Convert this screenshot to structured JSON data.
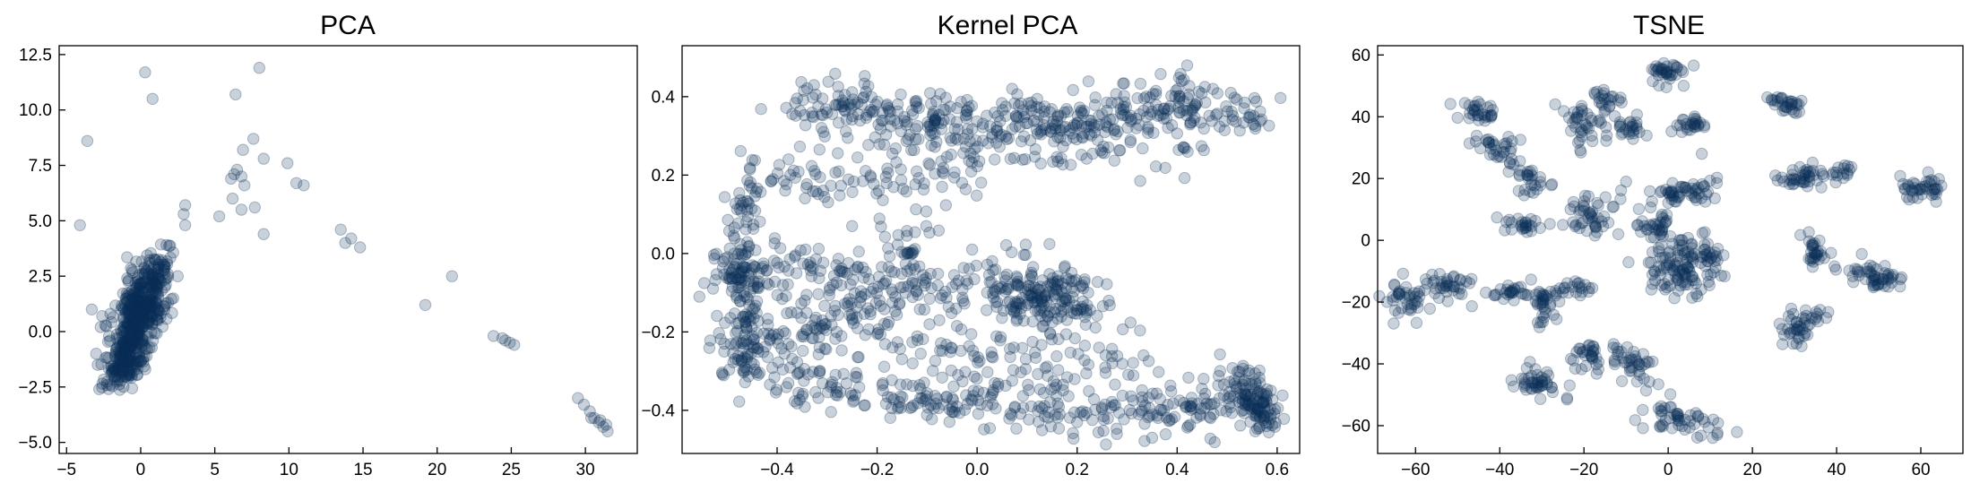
{
  "colors": {
    "point": "#0b2f57",
    "axis": "#000000",
    "background": "#ffffff"
  },
  "chart_data": [
    {
      "type": "scatter",
      "title": "PCA",
      "xlabel": "",
      "ylabel": "",
      "xlim": [
        -5.5,
        33.5
      ],
      "ylim": [
        -5.5,
        12.9
      ],
      "xticks": [
        -5,
        0,
        5,
        10,
        15,
        20,
        25,
        30
      ],
      "yticks": [
        -5.0,
        -2.5,
        0.0,
        2.5,
        5.0,
        7.5,
        10.0,
        12.5
      ],
      "xtick_labels": [
        "−5",
        "0",
        "5",
        "10",
        "15",
        "20",
        "25",
        "30"
      ],
      "ytick_labels": [
        "−5.0",
        "−2.5",
        "0.0",
        "2.5",
        "5.0",
        "7.5",
        "10.0",
        "12.5"
      ],
      "grid": false,
      "legend": "none",
      "alpha": 0.22,
      "series": [
        {
          "points": [
            [
              -3.6,
              8.6
            ],
            [
              -4.1,
              4.8
            ],
            [
              0.3,
              11.7
            ],
            [
              0.8,
              10.5
            ],
            [
              8.0,
              11.9
            ],
            [
              6.4,
              10.7
            ],
            [
              7.6,
              8.7
            ],
            [
              6.9,
              8.2
            ],
            [
              8.3,
              7.8
            ],
            [
              9.9,
              7.6
            ],
            [
              6.5,
              7.3
            ],
            [
              6.8,
              7.0
            ],
            [
              6.1,
              6.9
            ],
            [
              7.0,
              6.6
            ],
            [
              6.3,
              7.1
            ],
            [
              10.5,
              6.7
            ],
            [
              11.0,
              6.6
            ],
            [
              6.2,
              6.0
            ],
            [
              6.8,
              5.5
            ],
            [
              7.7,
              5.6
            ],
            [
              5.3,
              5.2
            ],
            [
              8.3,
              4.4
            ],
            [
              3.0,
              5.7
            ],
            [
              2.9,
              5.3
            ],
            [
              3.0,
              4.8
            ],
            [
              13.5,
              4.6
            ],
            [
              13.8,
              4.0
            ],
            [
              14.2,
              4.2
            ],
            [
              14.8,
              3.8
            ],
            [
              21.0,
              2.5
            ],
            [
              19.2,
              1.2
            ],
            [
              23.8,
              -0.2
            ],
            [
              24.4,
              -0.3
            ],
            [
              24.9,
              -0.5
            ],
            [
              25.2,
              -0.6
            ],
            [
              24.6,
              -0.4
            ],
            [
              29.5,
              -3.0
            ],
            [
              29.9,
              -3.3
            ],
            [
              30.3,
              -3.6
            ],
            [
              30.6,
              -3.9
            ],
            [
              30.9,
              -4.1
            ],
            [
              31.2,
              -4.3
            ],
            [
              31.5,
              -4.5
            ],
            [
              30.4,
              -3.9
            ],
            [
              31.0,
              -4.0
            ],
            [
              31.4,
              -4.2
            ],
            [
              -3.3,
              1.0
            ],
            [
              -2.9,
              -1.5
            ],
            [
              -2.6,
              0.7
            ],
            [
              2.5,
              2.5
            ],
            [
              2.2,
              1.5
            ],
            [
              -3.0,
              -1.0
            ],
            [
              -2.7,
              0.2
            ],
            [
              -2.8,
              -2.6
            ]
          ],
          "clusters": [
            {
              "cx": -0.3,
              "cy": 0.5,
              "sx": 0.85,
              "sy": 1.35,
              "rho": 0.62,
              "n": 430
            },
            {
              "cx": 0.9,
              "cy": 1.7,
              "sx": 0.7,
              "sy": 1.3,
              "rho": 0.5,
              "n": 90
            },
            {
              "cx": -1.1,
              "cy": -1.6,
              "sx": 0.55,
              "sy": 0.6,
              "rho": 0.3,
              "n": 80
            }
          ]
        }
      ]
    },
    {
      "type": "scatter",
      "title": "Kernel PCA",
      "xlabel": "",
      "ylabel": "",
      "xlim": [
        -0.59,
        0.645
      ],
      "ylim": [
        -0.51,
        0.53
      ],
      "xticks": [
        -0.4,
        -0.2,
        0.0,
        0.2,
        0.4,
        0.6
      ],
      "yticks": [
        -0.4,
        -0.2,
        0.0,
        0.2,
        0.4
      ],
      "xtick_labels": [
        "−0.4",
        "−0.2",
        "0.0",
        "0.2",
        "0.4",
        "0.6"
      ],
      "ytick_labels": [
        "−0.4",
        "−0.2",
        "0.0",
        "0.2",
        "0.4"
      ],
      "grid": false,
      "legend": "none",
      "alpha": 0.22,
      "series": [
        {
          "paths": [
            {
              "pts": [
                [
                  -0.36,
                  0.38
                ],
                [
                  -0.2,
                  0.36
                ],
                [
                  -0.05,
                  0.33
                ],
                [
                  0.1,
                  0.34
                ],
                [
                  0.25,
                  0.34
                ],
                [
                  0.4,
                  0.39
                ],
                [
                  0.55,
                  0.35
                ]
              ],
              "n": 420,
              "sd": 0.032
            },
            {
              "pts": [
                [
                  -0.45,
                  0.22
                ],
                [
                  -0.3,
                  0.18
                ],
                [
                  -0.15,
                  0.2
                ],
                [
                  0.0,
                  0.24
                ],
                [
                  0.2,
                  0.28
                ],
                [
                  0.45,
                  0.28
                ]
              ],
              "n": 160,
              "sd": 0.035
            },
            {
              "pts": [
                [
                  -0.46,
                  0.2
                ],
                [
                  -0.47,
                  0.0
                ],
                [
                  -0.46,
                  -0.15
                ],
                [
                  -0.47,
                  -0.3
                ]
              ],
              "n": 150,
              "sd": 0.022
            },
            {
              "pts": [
                [
                  -0.52,
                  -0.05
                ],
                [
                  -0.4,
                  -0.05
                ],
                [
                  -0.25,
                  -0.05
                ],
                [
                  -0.1,
                  -0.1
                ],
                [
                  0.1,
                  -0.12
                ],
                [
                  0.2,
                  -0.12
                ]
              ],
              "n": 230,
              "sd": 0.035
            },
            {
              "pts": [
                [
                  -0.5,
                  -0.28
                ],
                [
                  -0.35,
                  -0.2
                ],
                [
                  -0.2,
                  -0.18
                ],
                [
                  -0.05,
                  -0.25
                ],
                [
                  0.15,
                  -0.3
                ],
                [
                  0.35,
                  -0.25
                ]
              ],
              "n": 180,
              "sd": 0.04
            },
            {
              "pts": [
                [
                  -0.45,
                  -0.3
                ],
                [
                  -0.2,
                  -0.36
                ],
                [
                  0.0,
                  -0.38
                ],
                [
                  0.2,
                  -0.4
                ],
                [
                  0.38,
                  -0.4
                ],
                [
                  0.55,
                  -0.36
                ]
              ],
              "n": 300,
              "sd": 0.033
            },
            {
              "pts": [
                [
                  0.08,
                  -0.07
                ],
                [
                  0.2,
                  -0.15
                ]
              ],
              "n": 130,
              "sd": 0.045
            },
            {
              "pts": [
                [
                  0.52,
                  -0.3
                ],
                [
                  0.56,
                  -0.38
                ],
                [
                  0.58,
                  -0.42
                ]
              ],
              "n": 110,
              "sd": 0.02
            },
            {
              "pts": [
                [
                  -0.1,
                  0.1
                ],
                [
                  -0.2,
                  -0.1
                ],
                [
                  -0.3,
                  -0.2
                ]
              ],
              "n": 60,
              "sd": 0.04
            }
          ],
          "points": [
            [
              -0.14,
              0.0
            ],
            [
              -0.135,
              0.002
            ],
            [
              -0.13,
              0.0
            ],
            [
              -0.145,
              -0.002
            ],
            [
              -0.138,
              0.001
            ],
            [
              -0.132,
              -0.001
            ],
            [
              -0.14,
              0.003
            ],
            [
              -0.128,
              0.002
            ],
            [
              -0.07,
              0.17
            ],
            [
              0.07,
              0.42
            ],
            [
              0.42,
              0.48
            ],
            [
              0.35,
              -0.47
            ],
            [
              0.2,
              -0.43
            ],
            [
              -0.01,
              0.01
            ],
            [
              -0.25,
              0.07
            ]
          ]
        }
      ]
    },
    {
      "type": "scatter",
      "title": "TSNE",
      "xlabel": "",
      "ylabel": "",
      "xlim": [
        -69,
        70
      ],
      "ylim": [
        -69,
        63
      ],
      "xticks": [
        -60,
        -40,
        -20,
        0,
        20,
        40,
        60
      ],
      "yticks": [
        -60,
        -40,
        -20,
        0,
        20,
        40,
        60
      ],
      "xtick_labels": [
        "−60",
        "−40",
        "−20",
        "0",
        "20",
        "40",
        "60"
      ],
      "ytick_labels": [
        "−60",
        "−40",
        "−20",
        "0",
        "20",
        "40",
        "60"
      ],
      "grid": false,
      "legend": "none",
      "alpha": 0.22,
      "series": [
        {
          "clusters": [
            {
              "cx": 0,
              "cy": 55,
              "sx": 2.0,
              "sy": 2.0,
              "rho": 0,
              "n": 35
            },
            {
              "cx": -45,
              "cy": 42,
              "sx": 2.5,
              "sy": 1.5,
              "rho": 0,
              "n": 30
            },
            {
              "cx": -40,
              "cy": 29,
              "sx": 2.5,
              "sy": 2.5,
              "rho": -0.3,
              "n": 35
            },
            {
              "cx": -33,
              "cy": 20,
              "sx": 2.0,
              "sy": 2.5,
              "rho": 0,
              "n": 25
            },
            {
              "cx": -20,
              "cy": 38,
              "sx": 2.5,
              "sy": 3.5,
              "rho": 0,
              "n": 40
            },
            {
              "cx": -10,
              "cy": 36,
              "sx": 2.0,
              "sy": 2.0,
              "rho": 0,
              "n": 25
            },
            {
              "cx": -15,
              "cy": 46,
              "sx": 1.5,
              "sy": 2.0,
              "rho": 0,
              "n": 20
            },
            {
              "cx": 6,
              "cy": 38,
              "sx": 2.5,
              "sy": 1.5,
              "rho": 0,
              "n": 25
            },
            {
              "cx": 28,
              "cy": 44,
              "sx": 2.0,
              "sy": 1.5,
              "rho": -0.5,
              "n": 30
            },
            {
              "cx": 32,
              "cy": 20,
              "sx": 3.0,
              "sy": 2.0,
              "rho": 0,
              "n": 40
            },
            {
              "cx": 41,
              "cy": 22,
              "sx": 1.5,
              "sy": 1.5,
              "rho": 0,
              "n": 15
            },
            {
              "cx": 60,
              "cy": 17,
              "sx": 3.0,
              "sy": 2.0,
              "rho": 0,
              "n": 40
            },
            {
              "cx": 5,
              "cy": 16,
              "sx": 4.0,
              "sy": 2.0,
              "rho": 0.3,
              "n": 50
            },
            {
              "cx": -35,
              "cy": 5,
              "sx": 2.5,
              "sy": 1.5,
              "rho": 0,
              "n": 25
            },
            {
              "cx": -18,
              "cy": 8,
              "sx": 3.0,
              "sy": 4.0,
              "rho": 0,
              "n": 45
            },
            {
              "cx": -3,
              "cy": 5,
              "sx": 3.0,
              "sy": 2.5,
              "rho": 0,
              "n": 35
            },
            {
              "cx": 3,
              "cy": -8,
              "sx": 5.0,
              "sy": 5.0,
              "rho": 0,
              "n": 110
            },
            {
              "cx": 10,
              "cy": -5,
              "sx": 2.0,
              "sy": 2.0,
              "rho": 0,
              "n": 20
            },
            {
              "cx": 35,
              "cy": -3,
              "sx": 1.5,
              "sy": 4.0,
              "rho": 0,
              "n": 30
            },
            {
              "cx": 50,
              "cy": -13,
              "sx": 4.0,
              "sy": 3.0,
              "rho": -0.5,
              "n": 50
            },
            {
              "cx": 32,
              "cy": -28,
              "sx": 3.0,
              "sy": 3.0,
              "rho": 0.4,
              "n": 45
            },
            {
              "cx": -62,
              "cy": -19,
              "sx": 2.5,
              "sy": 3.0,
              "rho": 0,
              "n": 40
            },
            {
              "cx": -52,
              "cy": -15,
              "sx": 3.0,
              "sy": 1.8,
              "rho": 0,
              "n": 35
            },
            {
              "cx": -38,
              "cy": -17,
              "sx": 2.5,
              "sy": 1.5,
              "rho": 0,
              "n": 25
            },
            {
              "cx": -29,
              "cy": -21,
              "sx": 1.5,
              "sy": 3.5,
              "rho": 0,
              "n": 35
            },
            {
              "cx": -22,
              "cy": -16,
              "sx": 2.0,
              "sy": 1.5,
              "rho": 0,
              "n": 20
            },
            {
              "cx": -19,
              "cy": -38,
              "sx": 2.0,
              "sy": 3.0,
              "rho": 0.3,
              "n": 30
            },
            {
              "cx": -8,
              "cy": -40,
              "sx": 3.0,
              "sy": 3.5,
              "rho": -0.5,
              "n": 40
            },
            {
              "cx": -31,
              "cy": -46,
              "sx": 3.0,
              "sy": 2.0,
              "rho": 0,
              "n": 40
            },
            {
              "cx": 3,
              "cy": -58,
              "sx": 4.0,
              "sy": 2.5,
              "rho": -0.3,
              "n": 50
            }
          ],
          "points": [
            [
              -24,
              -51
            ],
            [
              -24,
              -51.5
            ],
            [
              -25,
              5
            ],
            [
              -10,
              19
            ],
            [
              8,
              28
            ]
          ]
        }
      ]
    }
  ]
}
